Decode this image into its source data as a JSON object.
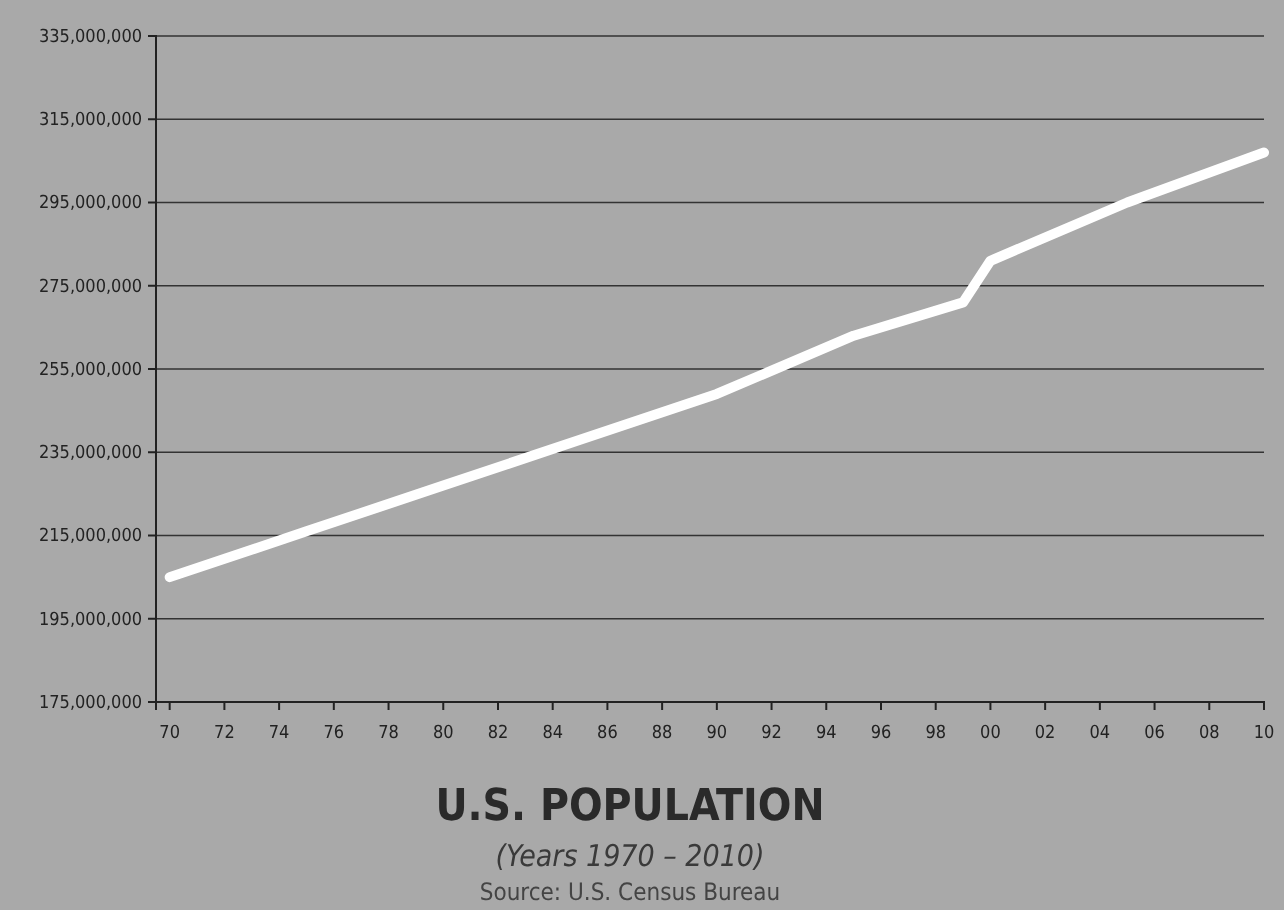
{
  "chart_data": {
    "type": "line",
    "title": "U.S. POPULATION",
    "subtitle": "(Years 1970 – 2010)",
    "annotations": [
      "Source: U.S. Census Bureau"
    ],
    "x": [
      1970,
      1975,
      1980,
      1985,
      1990,
      1995,
      1999,
      2000,
      2005,
      2010
    ],
    "series": [
      {
        "color": "#ffffff",
        "values": [
          205000000,
          216000000,
          227000000,
          238000000,
          249000000,
          263000000,
          271000000,
          281000000,
          295000000,
          307000000
        ]
      }
    ],
    "xlim": [
      1969.5,
      2010
    ],
    "xticks": [
      {
        "value": 1970,
        "label": "70"
      },
      {
        "value": 1972,
        "label": "72"
      },
      {
        "value": 1974,
        "label": "74"
      },
      {
        "value": 1976,
        "label": "76"
      },
      {
        "value": 1978,
        "label": "78"
      },
      {
        "value": 1980,
        "label": "80"
      },
      {
        "value": 1982,
        "label": "82"
      },
      {
        "value": 1984,
        "label": "84"
      },
      {
        "value": 1986,
        "label": "86"
      },
      {
        "value": 1988,
        "label": "88"
      },
      {
        "value": 1990,
        "label": "90"
      },
      {
        "value": 1992,
        "label": "92"
      },
      {
        "value": 1994,
        "label": "94"
      },
      {
        "value": 1996,
        "label": "96"
      },
      {
        "value": 1998,
        "label": "98"
      },
      {
        "value": 2000,
        "label": "00"
      },
      {
        "value": 2002,
        "label": "02"
      },
      {
        "value": 2004,
        "label": "04"
      },
      {
        "value": 2006,
        "label": "06"
      },
      {
        "value": 2008,
        "label": "08"
      },
      {
        "value": 2010,
        "label": "10"
      }
    ],
    "ylim": [
      175000000,
      335000000
    ],
    "yticks": [
      {
        "value": 175000000,
        "label": "175,000,000"
      },
      {
        "value": 195000000,
        "label": "195,000,000"
      },
      {
        "value": 215000000,
        "label": "215,000,000"
      },
      {
        "value": 235000000,
        "label": "235,000,000"
      },
      {
        "value": 255000000,
        "label": "255,000,000"
      },
      {
        "value": 275000000,
        "label": "275,000,000"
      },
      {
        "value": 295000000,
        "label": "295,000,000"
      },
      {
        "value": 315000000,
        "label": "315,000,000"
      },
      {
        "value": 335000000,
        "label": "335,000,000"
      }
    ],
    "grid": "y",
    "marker": "none",
    "line_style": "solid"
  }
}
